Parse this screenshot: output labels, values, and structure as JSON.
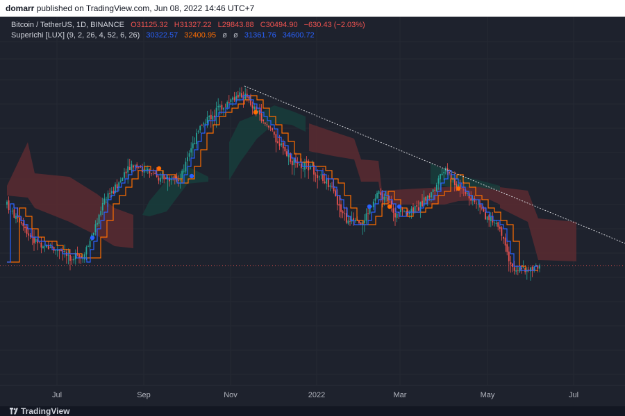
{
  "publish": {
    "author": "domarr",
    "text": "published on TradingView.com, Jun 08, 2022 14:46 UTC+7"
  },
  "legend_main": {
    "symbol": "Bitcoin / TetherUS, 1D, BINANCE",
    "o": "O31125.32",
    "h": "H31327.22",
    "l": "L29843.88",
    "c": "C30494.90",
    "chg": "−630.43 (−2.03%)"
  },
  "legend_ind": {
    "name": "SuperIchi [LUX] (9, 2, 26, 4, 52, 6, 26)",
    "v1": "30322.57",
    "v2": "32400.95",
    "v3": "ø",
    "v4": "ø",
    "v5": "31361.76",
    "v6": "34600.72"
  },
  "time_axis": {
    "ticks": [
      "Jul",
      "Sep",
      "Nov",
      "2022",
      "Mar",
      "May",
      "Jul"
    ]
  },
  "footer": {
    "brand": "TradingView"
  },
  "colors": {
    "background": "#1e222d",
    "up": "#26a69a",
    "down": "#ef5350",
    "blue": "#2962ff",
    "orange": "#ff6d00",
    "bear_cloud": "#5b2a31",
    "bull_cloud": "#173d3c"
  },
  "chart_data": {
    "type": "candlestick",
    "symbol": "Bitcoin / TetherUS",
    "timeframe": "1D",
    "exchange": "BINANCE",
    "x_ticks": [
      "Jul",
      "Sep",
      "Nov",
      "2022",
      "Mar",
      "May",
      "Jul"
    ],
    "price_path": [
      [
        "Jul",
        36000
      ],
      [
        "Jul",
        33000
      ],
      [
        "Jul",
        31500
      ],
      [
        "Sep",
        47000
      ],
      [
        "Sep",
        43000
      ],
      [
        "Sep",
        44000
      ],
      [
        "Nov",
        63000
      ],
      [
        "Nov",
        66000
      ],
      [
        "Nov",
        57000
      ],
      [
        "2022",
        47000
      ],
      [
        "2022",
        42000
      ],
      [
        "2022",
        37000
      ],
      [
        "Mar",
        40000
      ],
      [
        "Mar",
        38000
      ],
      [
        "Mar",
        47000
      ],
      [
        "May",
        40000
      ],
      [
        "May",
        29000
      ],
      [
        "May",
        30000
      ]
    ],
    "horizontal_line": {
      "value": 30494.9,
      "style": "dotted",
      "color": "#ef5350"
    },
    "trendline": {
      "from": "Nov",
      "direction": "down",
      "style": "dotted"
    },
    "indicator": "SuperIchi [LUX] (9, 2, 26, 4, 52, 6, 26)"
  }
}
